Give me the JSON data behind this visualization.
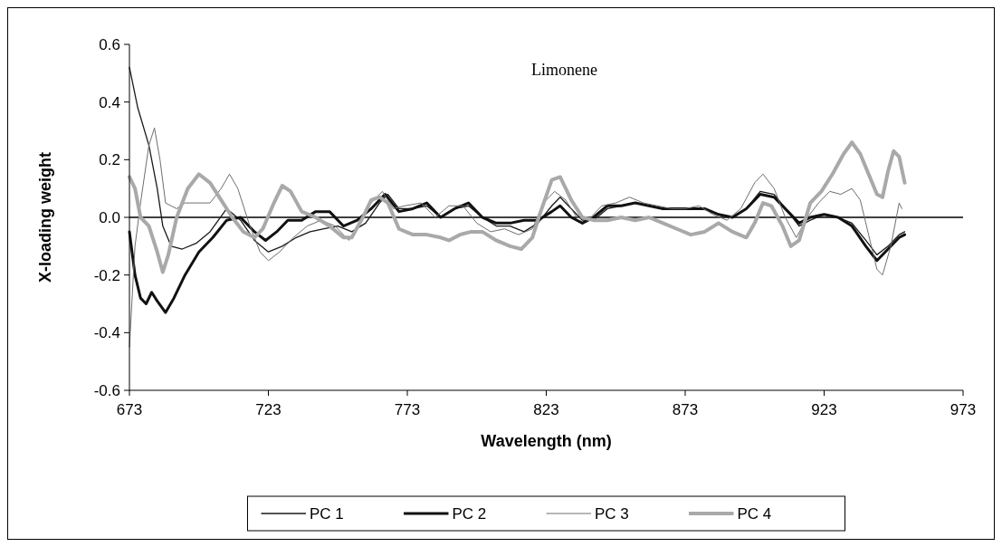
{
  "chart_data": {
    "type": "line",
    "title": "Limonene",
    "xlabel": "Wavelength (nm)",
    "ylabel": "X-loading weight",
    "xlim": [
      673,
      973
    ],
    "xticks": [
      673,
      723,
      773,
      823,
      873,
      923,
      973
    ],
    "ylim": [
      -0.6,
      0.6
    ],
    "yticks": [
      -0.6,
      -0.4,
      -0.2,
      {
        "value": 0,
        "label": "0.0"
      },
      0.2,
      0.4,
      0.6
    ],
    "grid": false,
    "legend": "bottom",
    "ref_lines": [
      {
        "axis": "y",
        "value": 0,
        "color": "#000000"
      }
    ],
    "series": [
      {
        "name": "PC 1",
        "color": "#1a1a1a",
        "x": [
          673,
          676,
          680,
          683,
          685,
          688,
          692,
          697,
          702,
          708,
          713,
          718,
          723,
          728,
          733,
          738,
          743,
          748,
          753,
          758,
          763,
          766,
          770,
          775,
          780,
          785,
          790,
          795,
          800,
          805,
          810,
          815,
          820,
          825,
          828,
          832,
          836,
          840,
          845,
          850,
          855,
          860,
          865,
          870,
          875,
          880,
          885,
          890,
          895,
          900,
          905,
          910,
          914,
          918,
          923,
          928,
          933,
          938,
          942,
          946,
          950,
          952
        ],
        "values": [
          0.52,
          0.38,
          0.25,
          0.1,
          -0.03,
          -0.1,
          -0.11,
          -0.09,
          -0.05,
          0.03,
          -0.01,
          -0.08,
          -0.12,
          -0.1,
          -0.07,
          -0.05,
          -0.04,
          -0.03,
          -0.05,
          -0.02,
          0.05,
          0.08,
          0.03,
          0.03,
          0.04,
          0,
          0.03,
          0.04,
          0,
          -0.03,
          -0.03,
          -0.05,
          -0.02,
          0.04,
          0.07,
          0.03,
          -0.01,
          -0.01,
          0.03,
          0.04,
          0.05,
          0.04,
          0.03,
          0.03,
          0.03,
          0.03,
          0.01,
          0,
          0.03,
          0.09,
          0.08,
          0.02,
          -0.03,
          -0.01,
          0.01,
          0,
          -0.02,
          -0.08,
          -0.13,
          -0.1,
          -0.06,
          -0.05
        ]
      },
      {
        "name": "PC 2",
        "color": "#111111",
        "x": [
          673,
          675,
          677,
          679,
          681,
          683,
          686,
          689,
          693,
          698,
          703,
          708,
          713,
          718,
          722,
          726,
          730,
          735,
          740,
          745,
          750,
          755,
          760,
          765,
          770,
          775,
          780,
          785,
          790,
          795,
          800,
          805,
          810,
          815,
          820,
          825,
          828,
          832,
          836,
          840,
          845,
          850,
          855,
          860,
          865,
          870,
          875,
          880,
          885,
          890,
          895,
          900,
          905,
          910,
          914,
          918,
          923,
          928,
          933,
          938,
          942,
          946,
          950,
          952
        ],
        "values": [
          -0.05,
          -0.2,
          -0.28,
          -0.3,
          -0.26,
          -0.29,
          -0.33,
          -0.28,
          -0.2,
          -0.12,
          -0.07,
          -0.01,
          0,
          -0.05,
          -0.08,
          -0.05,
          -0.01,
          -0.01,
          0.02,
          0.02,
          -0.03,
          -0.01,
          0.03,
          0.08,
          0.02,
          0.03,
          0.05,
          0,
          0.03,
          0.05,
          0,
          -0.02,
          -0.02,
          -0.01,
          -0.01,
          0.02,
          0.04,
          0,
          -0.02,
          0,
          0.04,
          0.04,
          0.05,
          0.04,
          0.03,
          0.03,
          0.03,
          0.03,
          0.01,
          0,
          0.03,
          0.08,
          0.07,
          0.02,
          -0.02,
          0,
          0.01,
          0,
          -0.03,
          -0.1,
          -0.15,
          -0.11,
          -0.07,
          -0.06
        ]
      },
      {
        "name": "PC 3",
        "color": "#6e6e6e",
        "x": [
          673,
          675,
          677,
          680,
          682,
          684,
          686,
          688,
          690,
          693,
          697,
          702,
          706,
          709,
          712,
          716,
          720,
          723,
          727,
          732,
          737,
          742,
          747,
          752,
          756,
          760,
          764,
          768,
          772,
          778,
          783,
          788,
          793,
          798,
          803,
          808,
          813,
          818,
          822,
          826,
          830,
          834,
          838,
          843,
          848,
          853,
          858,
          863,
          868,
          873,
          878,
          883,
          888,
          893,
          898,
          901,
          905,
          909,
          913,
          917,
          921,
          925,
          929,
          933,
          936,
          939,
          942,
          944,
          947,
          950,
          951
        ],
        "values": [
          -0.45,
          -0.1,
          0.05,
          0.25,
          0.31,
          0.2,
          0.05,
          0.04,
          0.03,
          0.05,
          0.05,
          0.05,
          0.1,
          0.15,
          0.1,
          -0.02,
          -0.12,
          -0.15,
          -0.12,
          -0.07,
          -0.03,
          -0.01,
          -0.03,
          -0.08,
          -0.02,
          0.05,
          0.09,
          0.03,
          0.04,
          0.05,
          0,
          0.04,
          0.04,
          -0.02,
          -0.05,
          -0.04,
          -0.06,
          -0.04,
          0.05,
          0.09,
          0.06,
          0,
          -0.01,
          0.04,
          0.05,
          0.07,
          0.05,
          0.04,
          0.03,
          0.03,
          0.04,
          0.01,
          -0.01,
          0.03,
          0.12,
          0.15,
          0.1,
          0,
          -0.07,
          0,
          0.05,
          0.09,
          0.08,
          0.1,
          0.06,
          -0.06,
          -0.18,
          -0.2,
          -0.1,
          0.05,
          0.03
        ]
      },
      {
        "name": "PC 4",
        "color": "#a9a9a9",
        "x": [
          673,
          675,
          677,
          680,
          683,
          685,
          687,
          690,
          694,
          698,
          702,
          706,
          710,
          714,
          718,
          721,
          725,
          728,
          731,
          735,
          740,
          745,
          750,
          753,
          757,
          760,
          763,
          766,
          770,
          775,
          780,
          785,
          788,
          792,
          796,
          800,
          805,
          810,
          814,
          818,
          821,
          825,
          828,
          832,
          836,
          840,
          845,
          850,
          855,
          860,
          865,
          870,
          875,
          880,
          885,
          890,
          895,
          898,
          901,
          904,
          908,
          911,
          914,
          918,
          922,
          926,
          930,
          933,
          936,
          939,
          942,
          944,
          946,
          948,
          950,
          952
        ],
        "values": [
          0.14,
          0.1,
          0,
          -0.03,
          -0.12,
          -0.19,
          -0.13,
          0,
          0.1,
          0.15,
          0.12,
          0.06,
          0,
          -0.05,
          -0.07,
          -0.04,
          0.05,
          0.11,
          0.09,
          0.02,
          0,
          -0.03,
          -0.07,
          -0.07,
          0,
          0.06,
          0.07,
          0.05,
          -0.04,
          -0.06,
          -0.06,
          -0.07,
          -0.08,
          -0.06,
          -0.05,
          -0.05,
          -0.08,
          -0.1,
          -0.11,
          -0.07,
          0.02,
          0.13,
          0.14,
          0.06,
          0,
          -0.01,
          -0.01,
          0,
          -0.01,
          0,
          -0.02,
          -0.04,
          -0.06,
          -0.05,
          -0.02,
          -0.05,
          -0.07,
          -0.02,
          0.05,
          0.04,
          -0.03,
          -0.1,
          -0.08,
          0.05,
          0.09,
          0.15,
          0.22,
          0.26,
          0.22,
          0.15,
          0.08,
          0.07,
          0.16,
          0.23,
          0.21,
          0.12
        ]
      }
    ]
  }
}
